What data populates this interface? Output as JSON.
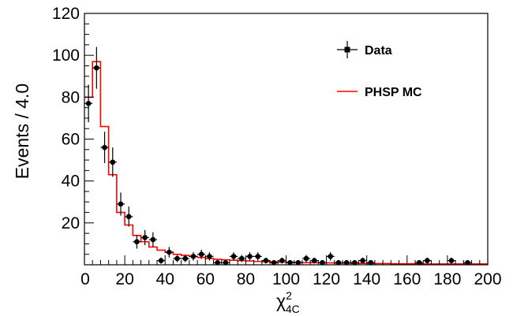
{
  "chart_data": {
    "type": "histogram-with-points",
    "ylabel": "Events / 4.0",
    "xlabel": {
      "base": "χ",
      "sup": "2",
      "sub": "4C"
    },
    "xlim": [
      0,
      200
    ],
    "ylim": [
      0,
      120
    ],
    "x_ticks": [
      0,
      20,
      40,
      60,
      80,
      100,
      120,
      140,
      160,
      180,
      200
    ],
    "y_ticks": [
      20,
      40,
      60,
      80,
      100,
      120
    ],
    "grid": false,
    "legend": {
      "position": "top-right",
      "entries": [
        {
          "label": "Data",
          "color": "#000000",
          "style": "marker-errorbar"
        },
        {
          "label": "PHSP MC",
          "color": "#ff0000",
          "style": "line"
        }
      ]
    },
    "series": [
      {
        "name": "Data",
        "color": "#000000",
        "points": [
          {
            "x": 2,
            "y": 77,
            "err": 9
          },
          {
            "x": 6,
            "y": 94,
            "err": 10
          },
          {
            "x": 10,
            "y": 56,
            "err": 7.5
          },
          {
            "x": 14,
            "y": 49,
            "err": 7
          },
          {
            "x": 18,
            "y": 29,
            "err": 5.5
          },
          {
            "x": 22,
            "y": 23,
            "err": 4.8
          },
          {
            "x": 26,
            "y": 11,
            "err": 3.3
          },
          {
            "x": 30,
            "y": 13,
            "err": 3.6
          },
          {
            "x": 34,
            "y": 12,
            "err": 3.5
          },
          {
            "x": 38,
            "y": 2,
            "err": 1.5
          },
          {
            "x": 42,
            "y": 6,
            "err": 2.5
          },
          {
            "x": 46,
            "y": 3,
            "err": 1.7
          },
          {
            "x": 50,
            "y": 3,
            "err": 1.7
          },
          {
            "x": 54,
            "y": 4,
            "err": 2
          },
          {
            "x": 58,
            "y": 5,
            "err": 2.2
          },
          {
            "x": 62,
            "y": 4,
            "err": 2
          },
          {
            "x": 66,
            "y": 1,
            "err": 1
          },
          {
            "x": 70,
            "y": 1,
            "err": 1
          },
          {
            "x": 74,
            "y": 4,
            "err": 2
          },
          {
            "x": 78,
            "y": 3,
            "err": 1.7
          },
          {
            "x": 82,
            "y": 4,
            "err": 2
          },
          {
            "x": 86,
            "y": 4,
            "err": 2
          },
          {
            "x": 90,
            "y": 2,
            "err": 1.4
          },
          {
            "x": 94,
            "y": 1,
            "err": 1
          },
          {
            "x": 98,
            "y": 2,
            "err": 1.4
          },
          {
            "x": 102,
            "y": 1,
            "err": 1
          },
          {
            "x": 106,
            "y": 1,
            "err": 1
          },
          {
            "x": 110,
            "y": 3,
            "err": 1.7
          },
          {
            "x": 114,
            "y": 2,
            "err": 1.4
          },
          {
            "x": 118,
            "y": 1,
            "err": 1
          },
          {
            "x": 122,
            "y": 4,
            "err": 2
          },
          {
            "x": 126,
            "y": 1,
            "err": 1
          },
          {
            "x": 130,
            "y": 1,
            "err": 1
          },
          {
            "x": 134,
            "y": 1,
            "err": 1
          },
          {
            "x": 138,
            "y": 2,
            "err": 1.4
          },
          {
            "x": 142,
            "y": 1,
            "err": 1
          },
          {
            "x": 166,
            "y": 1,
            "err": 1
          },
          {
            "x": 170,
            "y": 2,
            "err": 1.4
          },
          {
            "x": 182,
            "y": 2,
            "err": 1.4
          },
          {
            "x": 190,
            "y": 1,
            "err": 1
          }
        ]
      },
      {
        "name": "PHSP MC",
        "color": "#ff0000",
        "bin_width": 4,
        "bin_starts": [
          0,
          4,
          8,
          12,
          16,
          20,
          24,
          28,
          32,
          36,
          40,
          44,
          48,
          52,
          56,
          60,
          64,
          68,
          72,
          76,
          80,
          84,
          88,
          92,
          96,
          100,
          104,
          108,
          112,
          116,
          120,
          124,
          128,
          132,
          136,
          140,
          144,
          148,
          152,
          156,
          160,
          164,
          168,
          172,
          176,
          180,
          184,
          188,
          192,
          196
        ],
        "values": [
          80,
          97,
          66,
          43,
          25,
          19,
          14,
          11,
          8.5,
          7,
          6,
          5,
          4.5,
          4,
          3.5,
          3,
          2.6,
          2.4,
          2.2,
          2,
          1.8,
          1.6,
          1.5,
          1.4,
          1.3,
          1.2,
          1.1,
          1,
          1,
          0.9,
          0.9,
          0.8,
          0.8,
          0.7,
          0.7,
          0.6,
          0.6,
          0.6,
          0.5,
          0.5,
          0.5,
          0.5,
          0.4,
          0.4,
          0.4,
          0.4,
          0.4,
          0.4,
          0.4,
          0.4
        ]
      }
    ]
  }
}
